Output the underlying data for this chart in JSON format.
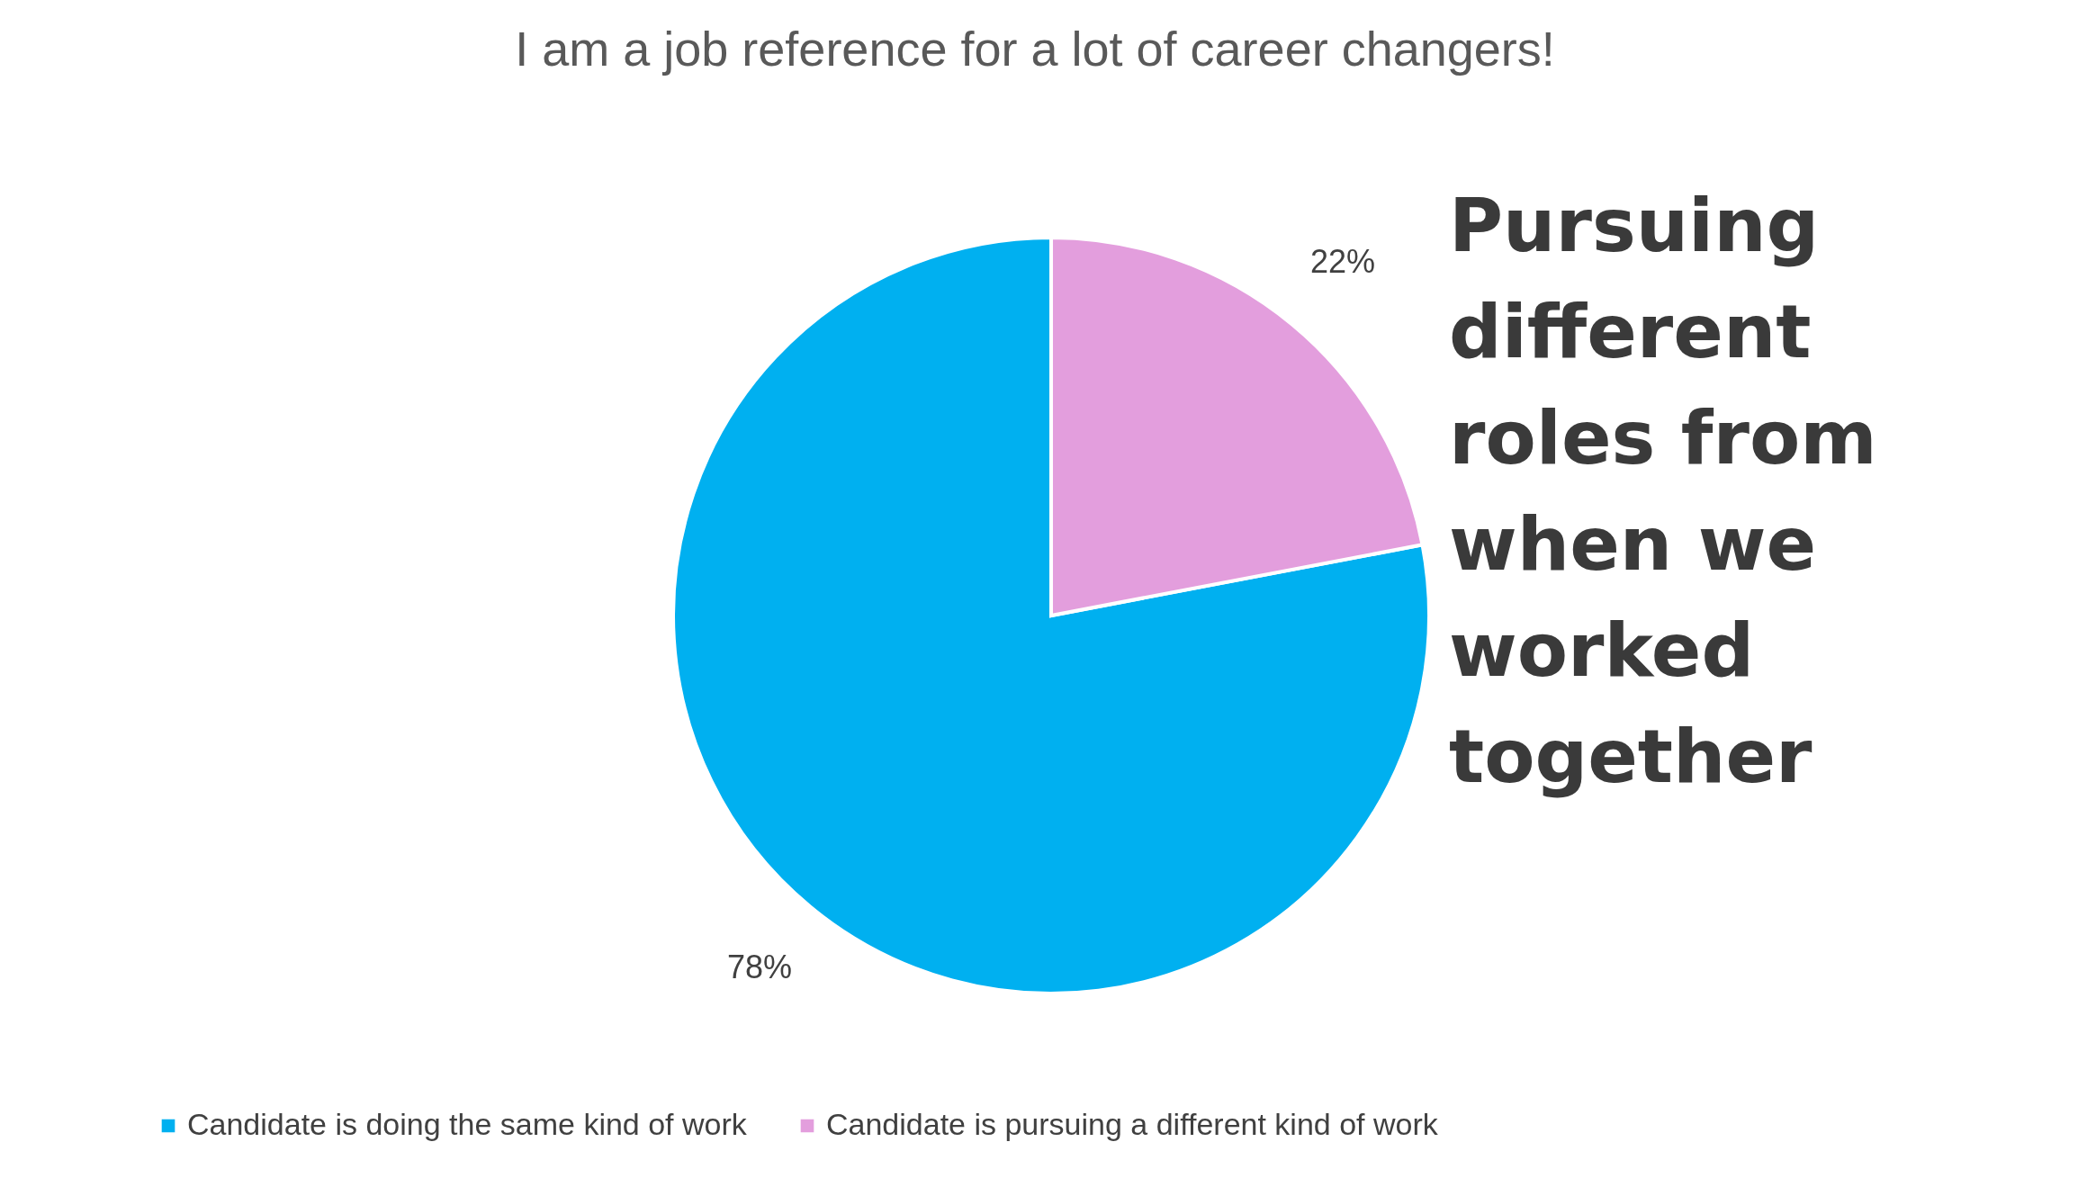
{
  "chart_data": {
    "type": "pie",
    "title": "I am a job reference for a lot of career changers!",
    "categories": [
      "Candidate is doing the same kind of work",
      "Candidate is pursuing a different kind of work"
    ],
    "values": [
      78,
      22
    ],
    "colors": [
      "#00b0f0",
      "#e39edd"
    ],
    "value_labels": [
      "78%",
      "22%"
    ],
    "legend": "bottom",
    "annotations": [
      "Pursuing\ndifferent\nroles from\nwhen we\nworked\ntogether"
    ]
  }
}
